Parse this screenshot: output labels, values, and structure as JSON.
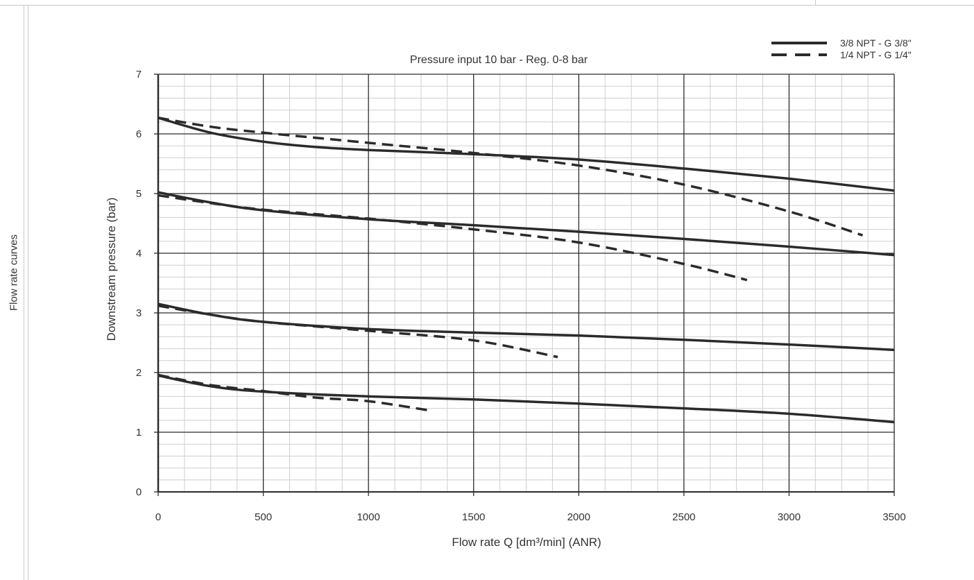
{
  "page": {
    "side_label": "Flow rate curves"
  },
  "chart_data": {
    "type": "line",
    "title": "Pressure input 10 bar - Reg. 0-8 bar",
    "xlabel": "Flow rate Q [dm³/min] (ANR)",
    "ylabel": "Downstream pressure (bar)",
    "xlim": [
      0,
      3500
    ],
    "ylim": [
      0,
      7
    ],
    "x_ticks": [
      "0",
      "500",
      "1000",
      "1500",
      "2000",
      "2500",
      "3000",
      "3500"
    ],
    "y_ticks": [
      "0",
      "1",
      "2",
      "3",
      "4",
      "5",
      "6",
      "7"
    ],
    "grid": true,
    "legend_position": "top-right",
    "legend": [
      {
        "label": "3/8 NPT - G 3/8\"",
        "style": "solid"
      },
      {
        "label": "1/4 NPT - G 1/4\"",
        "style": "dashed"
      }
    ],
    "line_color": "#2b2b2b",
    "series": [
      {
        "group": "3/8 NPT - G 3/8\"",
        "style": "solid",
        "x": [
          0,
          250,
          500,
          750,
          1000,
          1500,
          2000,
          2500,
          3000,
          3500
        ],
        "y": [
          6.27,
          6.02,
          5.87,
          5.78,
          5.73,
          5.66,
          5.57,
          5.42,
          5.25,
          5.05
        ]
      },
      {
        "group": "1/4 NPT - G 1/4\"",
        "style": "dashed",
        "x": [
          0,
          250,
          500,
          1000,
          1500,
          2000,
          2500,
          3000,
          3350
        ],
        "y": [
          6.27,
          6.12,
          6.02,
          5.85,
          5.68,
          5.47,
          5.15,
          4.7,
          4.3
        ]
      },
      {
        "group": "3/8 NPT - G 3/8\"",
        "style": "solid",
        "x": [
          0,
          250,
          500,
          1000,
          1500,
          2000,
          2500,
          3000,
          3500
        ],
        "y": [
          5.02,
          4.85,
          4.72,
          4.57,
          4.47,
          4.36,
          4.24,
          4.11,
          3.97
        ]
      },
      {
        "group": "1/4 NPT - G 1/4\"",
        "style": "dashed",
        "x": [
          0,
          250,
          500,
          1000,
          1500,
          2000,
          2500,
          2800
        ],
        "y": [
          4.97,
          4.84,
          4.73,
          4.58,
          4.4,
          4.18,
          3.82,
          3.55
        ]
      },
      {
        "group": "3/8 NPT - G 3/8\"",
        "style": "solid",
        "x": [
          0,
          250,
          500,
          1000,
          1500,
          2000,
          2500,
          3000,
          3500
        ],
        "y": [
          3.15,
          2.97,
          2.85,
          2.73,
          2.67,
          2.62,
          2.55,
          2.47,
          2.38
        ]
      },
      {
        "group": "1/4 NPT - G 1/4\"",
        "style": "dashed",
        "x": [
          0,
          250,
          500,
          1000,
          1500,
          1900
        ],
        "y": [
          3.12,
          2.97,
          2.85,
          2.7,
          2.54,
          2.26
        ]
      },
      {
        "group": "3/8 NPT - G 3/8\"",
        "style": "solid",
        "x": [
          0,
          250,
          500,
          1000,
          1500,
          2000,
          2500,
          3000,
          3500
        ],
        "y": [
          1.95,
          1.77,
          1.68,
          1.6,
          1.55,
          1.48,
          1.4,
          1.31,
          1.17
        ]
      },
      {
        "group": "1/4 NPT - G 1/4\"",
        "style": "dashed",
        "x": [
          0,
          250,
          500,
          750,
          1000,
          1300
        ],
        "y": [
          1.96,
          1.79,
          1.69,
          1.58,
          1.52,
          1.36
        ]
      }
    ]
  }
}
